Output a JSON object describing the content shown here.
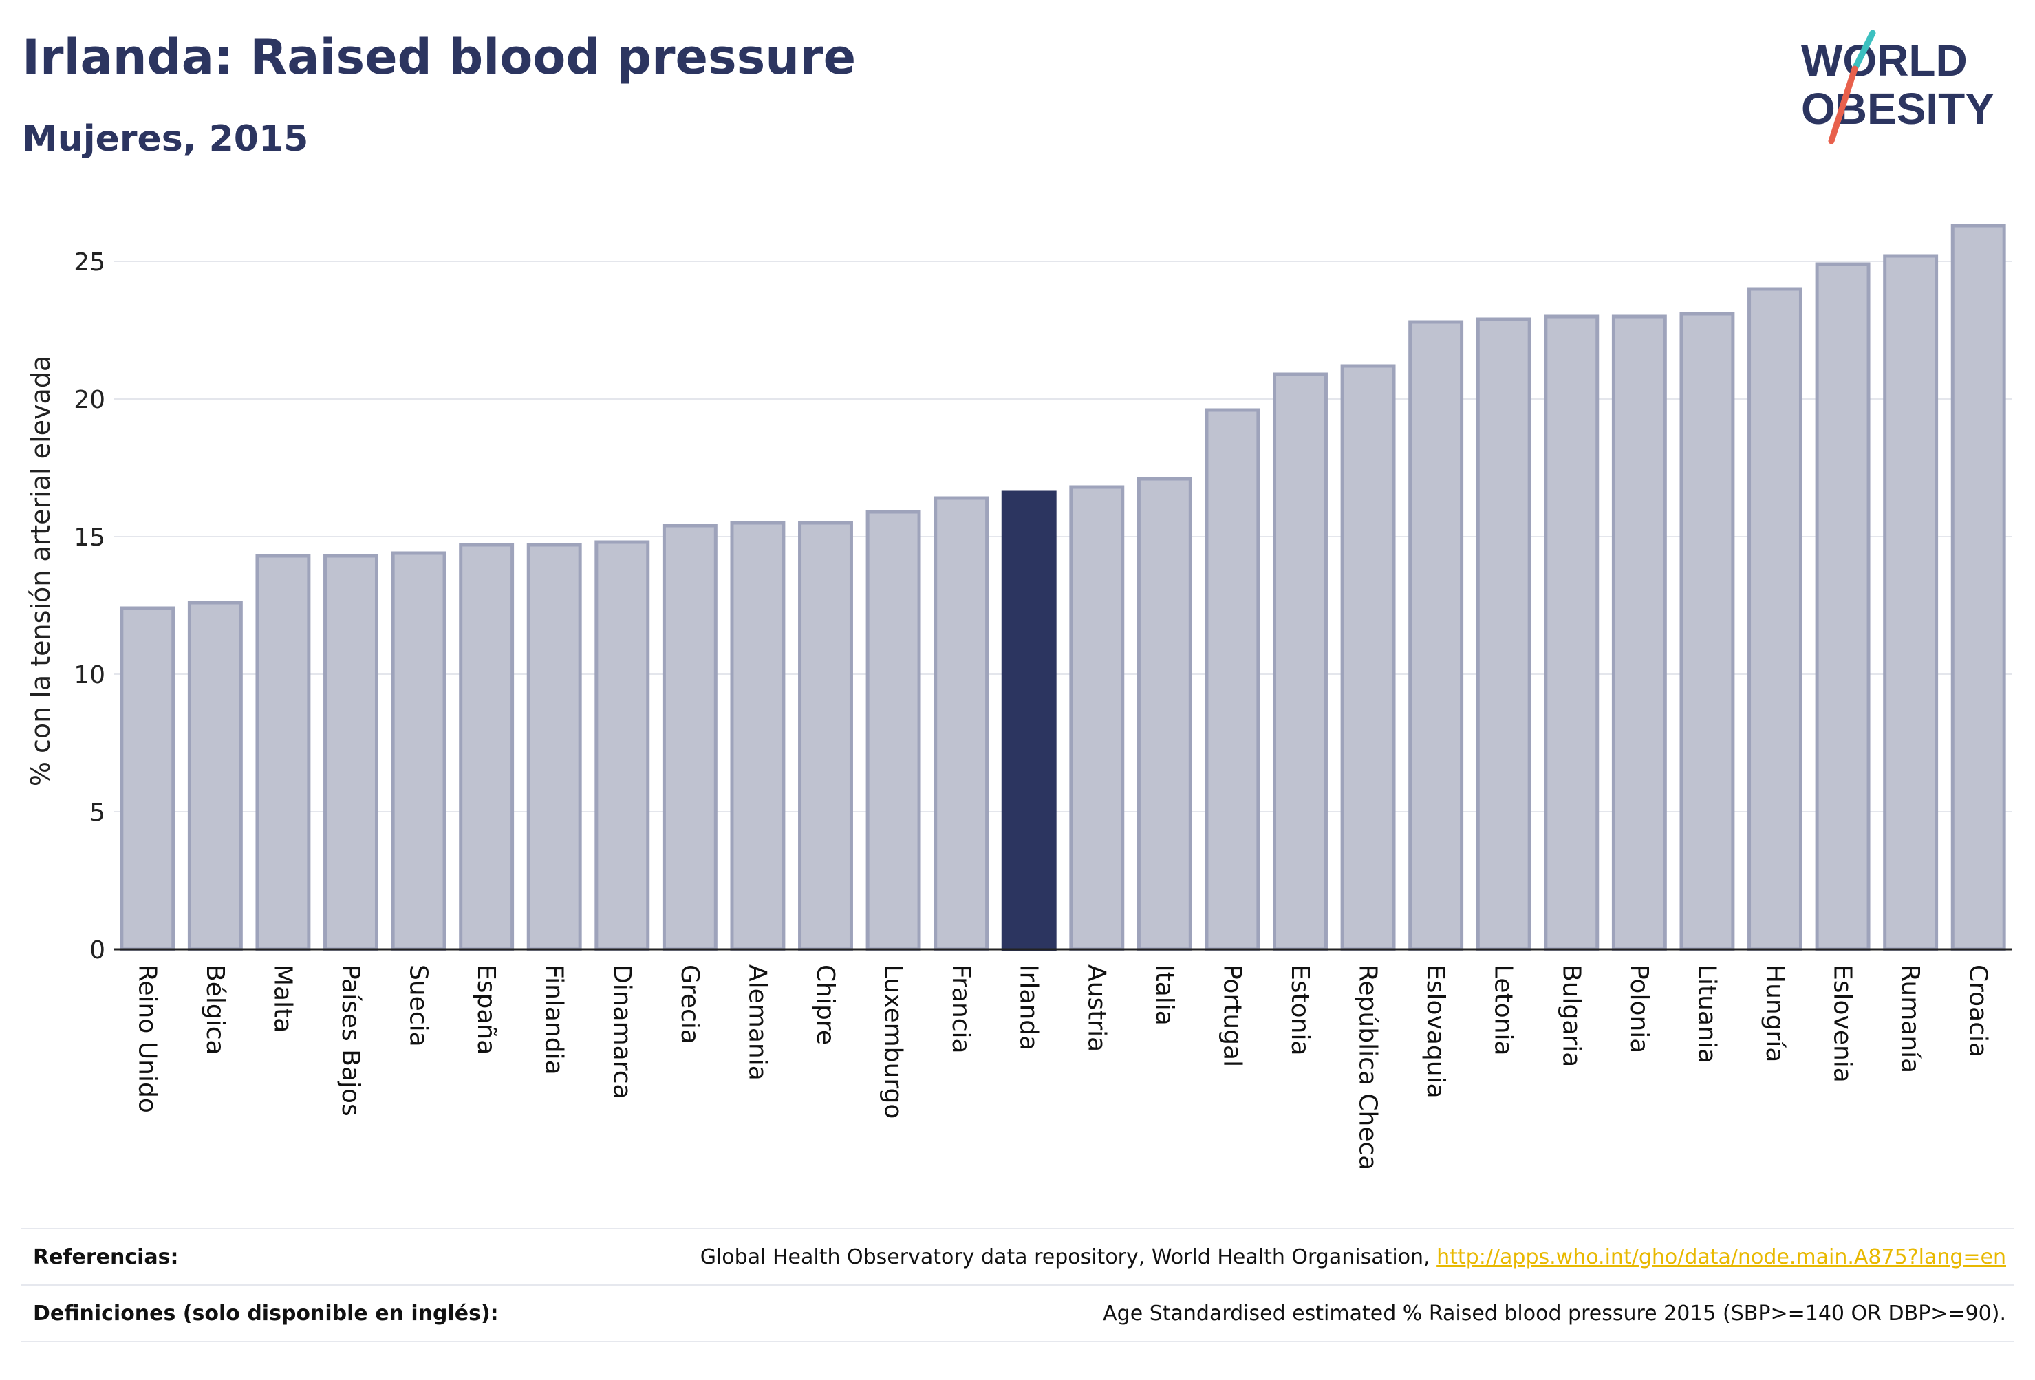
{
  "header": {
    "title": "Irlanda: Raised blood pressure",
    "subtitle": "Mujeres, 2015"
  },
  "logo": {
    "line1": "WORLD",
    "line2": "OBESITY"
  },
  "colors": {
    "bar": "#bfc2d0",
    "bar_stroke": "#9ea3bb",
    "highlight": "#2c3560",
    "text": "#2c3560"
  },
  "chart_data": {
    "type": "bar",
    "ylabel": "% con la tensión arterial elevada",
    "ylim": [
      0,
      27
    ],
    "yticks": [
      0,
      5,
      10,
      15,
      20,
      25
    ],
    "highlight": "Irlanda",
    "categories": [
      "Reino Unido",
      "Bélgica",
      "Malta",
      "Países Bajos",
      "Suecia",
      "España",
      "Finlandia",
      "Dinamarca",
      "Grecia",
      "Alemania",
      "Chipre",
      "Luxemburgo",
      "Francia",
      "Irlanda",
      "Austria",
      "Italia",
      "Portugal",
      "Estonia",
      "República Checa",
      "Eslovaquia",
      "Letonia",
      "Bulgaria",
      "Polonia",
      "Lituania",
      "Hungría",
      "Eslovenia",
      "Rumanía",
      "Croacia"
    ],
    "values": [
      12.4,
      12.6,
      14.3,
      14.3,
      14.4,
      14.7,
      14.7,
      14.8,
      15.4,
      15.5,
      15.5,
      15.9,
      16.4,
      16.6,
      16.8,
      17.1,
      19.6,
      20.9,
      21.2,
      22.8,
      22.9,
      23.0,
      23.0,
      23.1,
      24.0,
      24.9,
      25.2,
      26.3
    ],
    "grid": true
  },
  "footer": {
    "references_label": "Referencias:",
    "references_text": "Global Health Observatory data repository, World Health Organisation, ",
    "references_link": "http://apps.who.int/gho/data/node.main.A875?lang=en",
    "definitions_label": "Definiciones (solo disponible en inglés):",
    "definitions_text": "Age Standardised estimated % Raised blood pressure 2015 (SBP>=140 OR DBP>=90)."
  }
}
